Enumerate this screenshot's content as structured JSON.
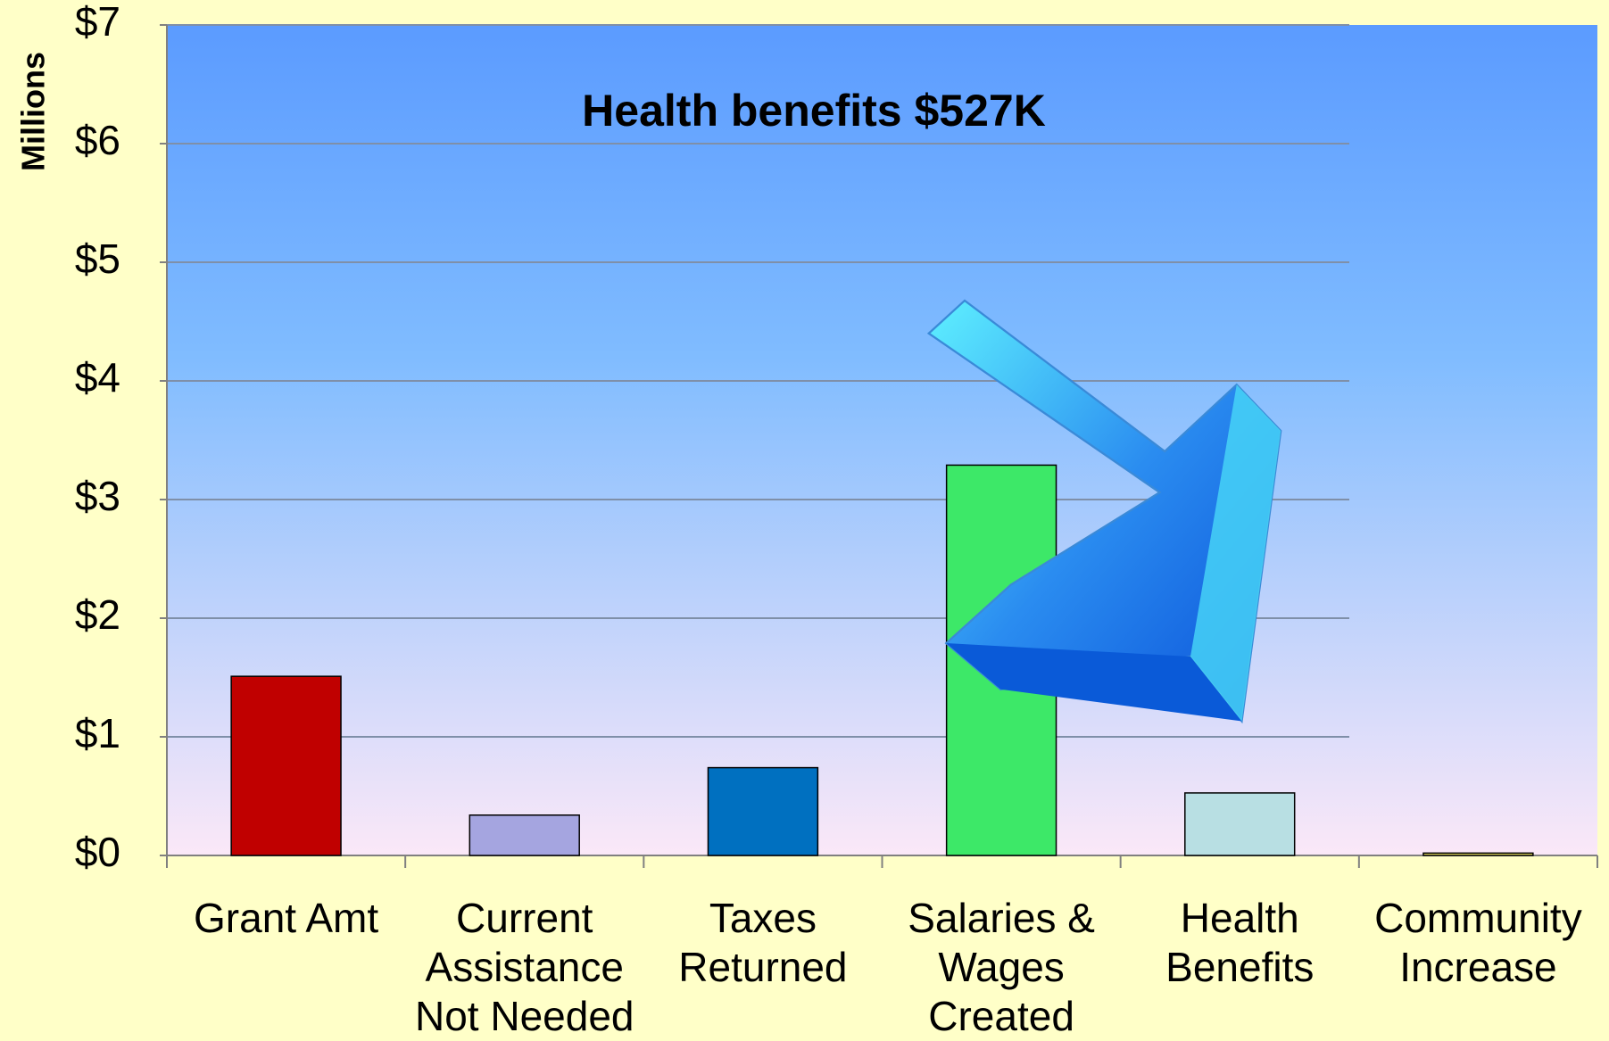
{
  "chart_data": {
    "type": "bar",
    "y_axis_label": "Millions",
    "annotation": "Health benefits  $527K",
    "categories": [
      "Grant Amt",
      "Current\nAssistance\nNot Needed",
      "Taxes\nReturned",
      "Salaries &\nWages\nCreated",
      "Health\nBenefits",
      "Community\nIncrease"
    ],
    "values": [
      1.51,
      0.34,
      0.74,
      3.29,
      0.527,
      0.02
    ],
    "colors": [
      "#c00000",
      "#a5a5e0",
      "#0070c0",
      "#3de868",
      "#b8dfe3",
      "#e8e060"
    ],
    "ylim": [
      0,
      7
    ],
    "yticks": [
      {
        "value": 0,
        "label": "$0"
      },
      {
        "value": 1,
        "label": "$1"
      },
      {
        "value": 2,
        "label": "$2"
      },
      {
        "value": 3,
        "label": "$3"
      },
      {
        "value": 4,
        "label": "$4"
      },
      {
        "value": 5,
        "label": "$5"
      },
      {
        "value": 6,
        "label": "$6"
      },
      {
        "value": 7,
        "label": "$7"
      }
    ],
    "grid": true
  }
}
